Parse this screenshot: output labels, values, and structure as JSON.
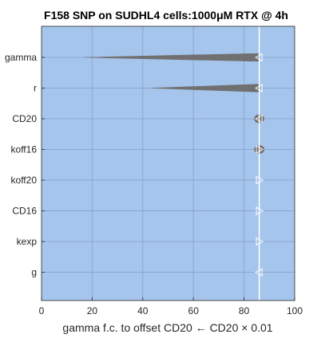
{
  "chart_data": {
    "type": "violin",
    "title": "F158 SNP on SUDHL4 cells:1000μM RTX @ 4h",
    "xlabel": "gamma f.c. to offset CD20 ← CD20 × 0.01",
    "ylabel": "",
    "xlim": [
      0,
      100
    ],
    "xticks": [
      0,
      20,
      40,
      60,
      80,
      100
    ],
    "grid": true,
    "reference_line_x": 86,
    "categories": [
      "gamma",
      "r",
      "CD20",
      "koff16",
      "koff20",
      "CD16",
      "kexp",
      "g"
    ],
    "series": [
      {
        "category": "gamma",
        "min": 17,
        "max": 86,
        "marker": "triangle-left",
        "shape": "wedge"
      },
      {
        "category": "r",
        "min": 43.5,
        "max": 86,
        "marker": "triangle-left",
        "shape": "wedge"
      },
      {
        "category": "CD20",
        "min": 84,
        "max": 88,
        "marker": "triangle-left",
        "shape": "blob"
      },
      {
        "category": "koff16",
        "min": 84,
        "max": 88,
        "marker": "triangle-right",
        "shape": "blob"
      },
      {
        "category": "koff20",
        "min": 86,
        "max": 86,
        "marker": "triangle-right",
        "shape": "point"
      },
      {
        "category": "CD16",
        "min": 86,
        "max": 86,
        "marker": "triangle-right",
        "shape": "point"
      },
      {
        "category": "kexp",
        "min": 86,
        "max": 86,
        "marker": "triangle-right",
        "shape": "point"
      },
      {
        "category": "g",
        "min": 86,
        "max": 86,
        "marker": "triangle-left",
        "shape": "point"
      }
    ],
    "colors": {
      "background": "#a6c5ec",
      "grid": "#8aa7cf",
      "shape_fill": "#707070",
      "reference_line": "#ffffff"
    }
  }
}
